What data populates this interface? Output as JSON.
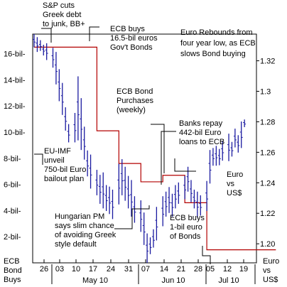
{
  "chart_data": {
    "type": "line",
    "title": "Euro Rebounds from four year low, as ECB slows Bond buying",
    "left_axis": {
      "name": "ECB Bond Buys",
      "ticks": [
        2,
        4,
        6,
        8,
        10,
        12,
        14,
        16
      ],
      "tick_labels": [
        "2-bil-",
        "4-bil-",
        "6-bil-",
        "8-bil-",
        "10-bil-",
        "12-bil-",
        "14-bil-",
        "16-bil-"
      ],
      "ylim": [
        0,
        17.5
      ]
    },
    "right_axis": {
      "name": "Euro vs US$",
      "ticks": [
        1.2,
        1.22,
        1.24,
        1.26,
        1.28,
        1.3,
        1.32
      ],
      "tick_labels": [
        "1.20",
        "1.22",
        "1.24",
        "1.26",
        "1.28",
        "1.3",
        "1.32"
      ],
      "ylim": [
        1.1875,
        1.3375
      ]
    },
    "x_tick_labels": [
      "26",
      "03",
      "10",
      "17",
      "24",
      "31",
      "07",
      "14",
      "21",
      "28",
      "05",
      "12",
      "19"
    ],
    "x_months": [
      "May 10",
      "Jun 10",
      "Jul 10"
    ],
    "series": [
      {
        "name": "ECB Bond Purchases (weekly)",
        "color": "#b30000",
        "steps": [
          {
            "from_day": 0,
            "to_day": 20,
            "value": 16.5
          },
          {
            "from_day": 20,
            "to_day": 27,
            "value": 10.1
          },
          {
            "from_day": 27,
            "to_day": 34,
            "value": 7.6
          },
          {
            "from_day": 34,
            "to_day": 41,
            "value": 6.2
          },
          {
            "from_day": 41,
            "to_day": 48,
            "value": 6.7
          },
          {
            "from_day": 48,
            "to_day": 55,
            "value": 4.6
          },
          {
            "from_day": 55,
            "to_day": 62,
            "value": 1.0
          },
          {
            "from_day": 62,
            "to_day": 77,
            "value": 1.0
          }
        ]
      },
      {
        "name": "Euro vs US$",
        "color": "#1a1aa0",
        "type": "ohlc",
        "bars": [
          {
            "day": 0,
            "high": 1.3375,
            "low": 1.3288
          },
          {
            "day": 1,
            "high": 1.3355,
            "low": 1.3258
          },
          {
            "day": 2,
            "high": 1.3335,
            "low": 1.3265
          },
          {
            "day": 3,
            "high": 1.3305,
            "low": 1.3235
          },
          {
            "day": 4,
            "high": 1.3315,
            "low": 1.3205
          },
          {
            "day": 6,
            "high": 1.3285,
            "low": 1.3155
          },
          {
            "day": 7,
            "high": 1.3258,
            "low": 1.3045
          },
          {
            "day": 8,
            "high": 1.3145,
            "low": 1.2935
          },
          {
            "day": 9,
            "high": 1.3055,
            "low": 1.2845
          },
          {
            "day": 10,
            "high": 1.2895,
            "low": 1.2742
          },
          {
            "day": 11,
            "high": 1.2785,
            "low": 1.2665
          },
          {
            "day": 13,
            "high": 1.2858,
            "low": 1.2665
          },
          {
            "day": 14,
            "high": 1.3098,
            "low": 1.2678
          },
          {
            "day": 15,
            "high": 1.2955,
            "low": 1.2615
          },
          {
            "day": 16,
            "high": 1.2768,
            "low": 1.2552
          },
          {
            "day": 17,
            "high": 1.2612,
            "low": 1.2442
          },
          {
            "day": 18,
            "high": 1.2585,
            "low": 1.2362
          },
          {
            "day": 20,
            "high": 1.2485,
            "low": 1.2318
          },
          {
            "day": 21,
            "high": 1.2452,
            "low": 1.2262
          },
          {
            "day": 22,
            "high": 1.2468,
            "low": 1.2232
          },
          {
            "day": 23,
            "high": 1.2385,
            "low": 1.2215
          },
          {
            "day": 24,
            "high": 1.2375,
            "low": 1.2195
          },
          {
            "day": 25,
            "high": 1.2355,
            "low": 1.2162
          },
          {
            "day": 27,
            "high": 1.2525,
            "low": 1.2258
          },
          {
            "day": 28,
            "high": 1.2555,
            "low": 1.2318
          },
          {
            "day": 29,
            "high": 1.2505,
            "low": 1.2282
          },
          {
            "day": 30,
            "high": 1.2445,
            "low": 1.2232
          },
          {
            "day": 31,
            "high": 1.2418,
            "low": 1.2178
          },
          {
            "day": 32,
            "high": 1.2312,
            "low": 1.2138
          },
          {
            "day": 34,
            "high": 1.2285,
            "low": 1.2078
          },
          {
            "day": 35,
            "high": 1.2205,
            "low": 1.1992
          },
          {
            "day": 36,
            "high": 1.2068,
            "low": 1.1875
          },
          {
            "day": 37,
            "high": 1.2042,
            "low": 1.1932
          },
          {
            "day": 38,
            "high": 1.2095,
            "low": 1.1975
          },
          {
            "day": 39,
            "high": 1.2242,
            "low": 1.2022
          },
          {
            "day": 41,
            "high": 1.2312,
            "low": 1.2115
          },
          {
            "day": 42,
            "high": 1.2342,
            "low": 1.2178
          },
          {
            "day": 43,
            "high": 1.2372,
            "low": 1.2202
          },
          {
            "day": 44,
            "high": 1.2328,
            "low": 1.2178
          },
          {
            "day": 45,
            "high": 1.2385,
            "low": 1.2232
          },
          {
            "day": 46,
            "high": 1.2402,
            "low": 1.2262
          },
          {
            "day": 48,
            "high": 1.2445,
            "low": 1.2292
          },
          {
            "day": 49,
            "high": 1.2505,
            "low": 1.2342
          },
          {
            "day": 50,
            "high": 1.2418,
            "low": 1.2272
          },
          {
            "day": 51,
            "high": 1.2355,
            "low": 1.2232
          },
          {
            "day": 52,
            "high": 1.2342,
            "low": 1.2172
          },
          {
            "day": 53,
            "high": 1.2318,
            "low": 1.2185
          },
          {
            "day": 55,
            "high": 1.2412,
            "low": 1.2215
          },
          {
            "day": 56,
            "high": 1.2615,
            "low": 1.2395
          },
          {
            "day": 57,
            "high": 1.2628,
            "low": 1.2512
          },
          {
            "day": 58,
            "high": 1.2642,
            "low": 1.2512
          },
          {
            "day": 59,
            "high": 1.2622,
            "low": 1.2515
          },
          {
            "day": 60,
            "high": 1.2675,
            "low": 1.2545
          },
          {
            "day": 62,
            "high": 1.2722,
            "low": 1.2542
          },
          {
            "day": 63,
            "high": 1.2668,
            "low": 1.2572
          },
          {
            "day": 64,
            "high": 1.2755,
            "low": 1.2632
          },
          {
            "day": 65,
            "high": 1.2712,
            "low": 1.2598
          },
          {
            "day": 66,
            "high": 1.2802,
            "low": 1.2628
          },
          {
            "day": 67,
            "high": 1.2815,
            "low": 1.2765
          }
        ]
      }
    ],
    "annotations": [
      {
        "id": "sp",
        "lines": [
          "S&P cuts",
          "Greek debt",
          "to junk, BB+"
        ],
        "color": "#000000"
      },
      {
        "id": "ecb16",
        "lines": [
          "ECB buys",
          "16.5-bil euros",
          "Gov't Bonds"
        ],
        "color": "#000000"
      },
      {
        "id": "title",
        "lines": [
          "Euro Rebounds from",
          "four year low, as ECB",
          "slows Bond buying"
        ],
        "color": "#000000"
      },
      {
        "id": "ecbweekly",
        "lines": [
          "ECB Bond",
          "Purchases",
          "(weekly)"
        ],
        "color": "#b30000"
      },
      {
        "id": "banks",
        "lines": [
          "Banks repay",
          "442-bil Euro",
          "loans to ECB"
        ],
        "color": "#000000"
      },
      {
        "id": "euimf",
        "lines": [
          "EU-IMF",
          "unveil",
          "750-bil Euro",
          "bailout plan"
        ],
        "color": "#000000"
      },
      {
        "id": "hungary",
        "lines": [
          "Hungarian PM",
          "says slim chance",
          "of avoiding Greek",
          "style default"
        ],
        "color": "#000000"
      },
      {
        "id": "ecb1",
        "lines": [
          "ECB buys",
          "1-bil euro",
          "of Bonds"
        ],
        "color": "#000000"
      },
      {
        "id": "eurousd_mid",
        "lines": [
          "Euro",
          "vs",
          "US$"
        ],
        "color": "#1a1aa0"
      },
      {
        "id": "bondbuys",
        "lines": [
          "ECB",
          "Bond",
          "Buys"
        ],
        "color": "#b30000"
      },
      {
        "id": "eurousd_bot",
        "lines": [
          "Euro",
          "vs",
          "US$"
        ],
        "color": "#1a1aa0"
      }
    ],
    "grid": false
  }
}
